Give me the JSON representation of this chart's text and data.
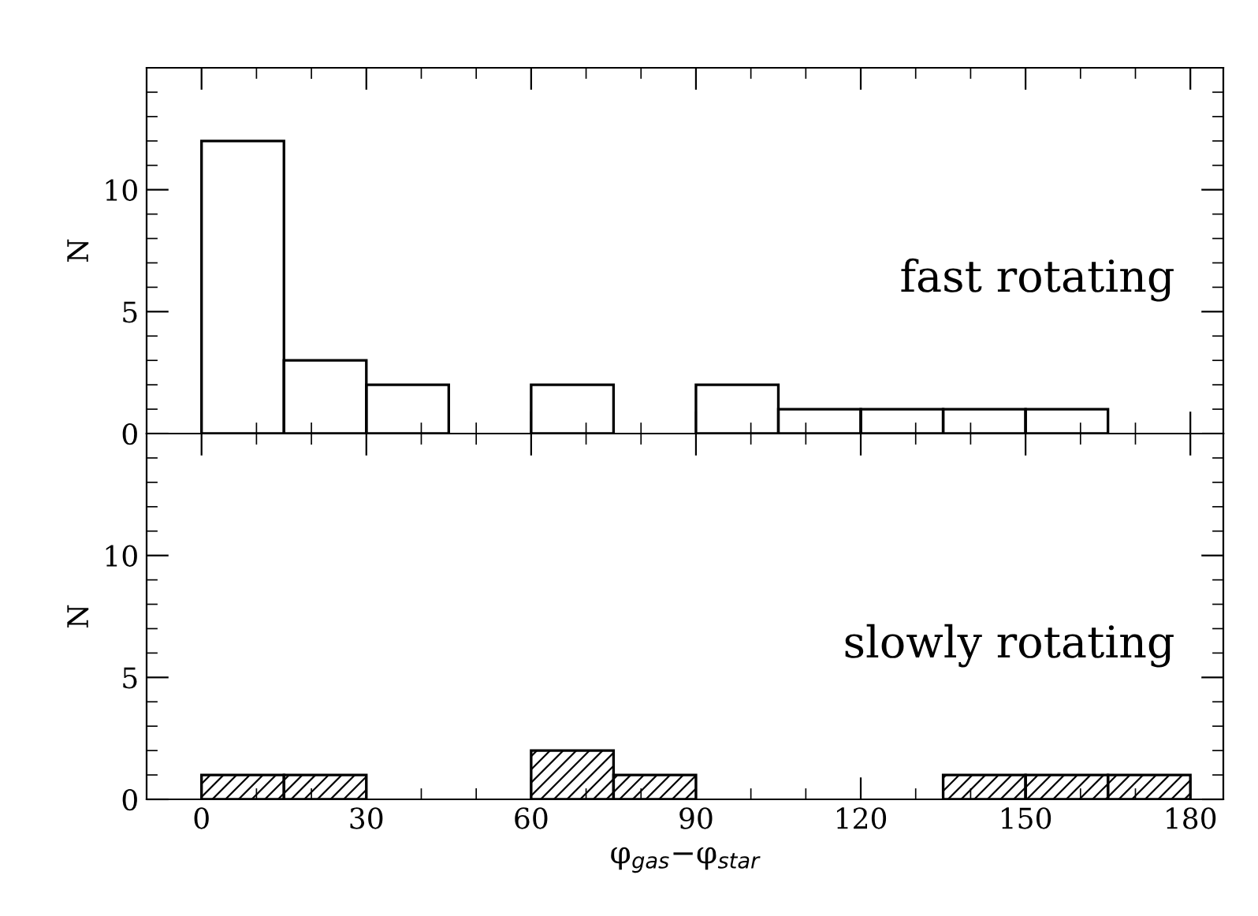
{
  "chart_data": [
    {
      "type": "histogram",
      "ylabel": "N",
      "bins": [
        0,
        15,
        30,
        45,
        60,
        75,
        90,
        105,
        120,
        135,
        150,
        165,
        180
      ],
      "values": [
        12,
        3,
        2,
        0,
        2,
        0,
        2,
        1,
        1,
        1,
        1,
        0
      ],
      "color": "#000000",
      "xlim": [
        -10,
        186
      ],
      "ylim": [
        0,
        15
      ],
      "xticks": [
        0,
        30,
        60,
        90,
        120,
        150,
        180
      ],
      "yticks": [
        0,
        5,
        10
      ],
      "tick_labels": "y",
      "annotations": [
        "fast rotating"
      ]
    },
    {
      "type": "histogram",
      "ylabel": "N",
      "xlabel": "φ$_{gas}$−φ$_{star}$",
      "bins": [
        0,
        15,
        30,
        45,
        60,
        75,
        90,
        105,
        120,
        135,
        150,
        165,
        180
      ],
      "values": [
        1,
        1,
        0,
        0,
        2,
        1,
        0,
        0,
        0,
        1,
        1,
        1
      ],
      "color": "#000000",
      "xlim": [
        -10,
        186
      ],
      "ylim": [
        0,
        15
      ],
      "xticks": [
        0,
        30,
        60,
        90,
        120,
        150,
        180
      ],
      "yticks": [
        0,
        5,
        10
      ],
      "annotations": [
        "slowly rotating"
      ]
    }
  ]
}
